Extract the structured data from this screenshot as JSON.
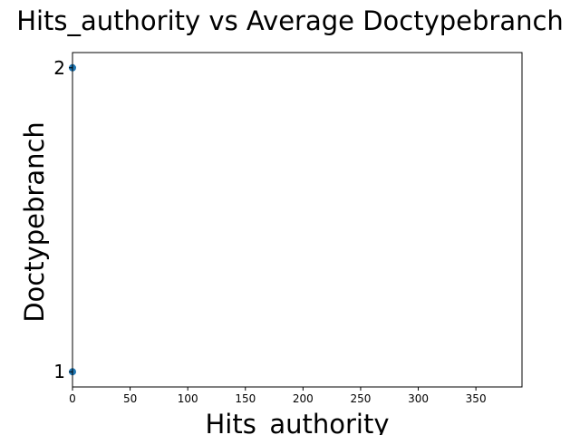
{
  "chart_data": {
    "type": "scatter",
    "title": "Hits_authority vs Average Doctypebranch",
    "xlabel": "Hits_authority",
    "ylabel": "Doctypebranch",
    "xlim": [
      0,
      390
    ],
    "ylim": [
      0.95,
      2.05
    ],
    "xticks": [
      0,
      50,
      100,
      150,
      200,
      250,
      300,
      350
    ],
    "yticks": [
      1,
      2
    ],
    "grid": false,
    "legend": "none",
    "series": [
      {
        "color": "#1f77b4",
        "points": [
          {
            "x": 0,
            "y": 2
          },
          {
            "x": 0,
            "y": 1
          }
        ]
      }
    ]
  }
}
